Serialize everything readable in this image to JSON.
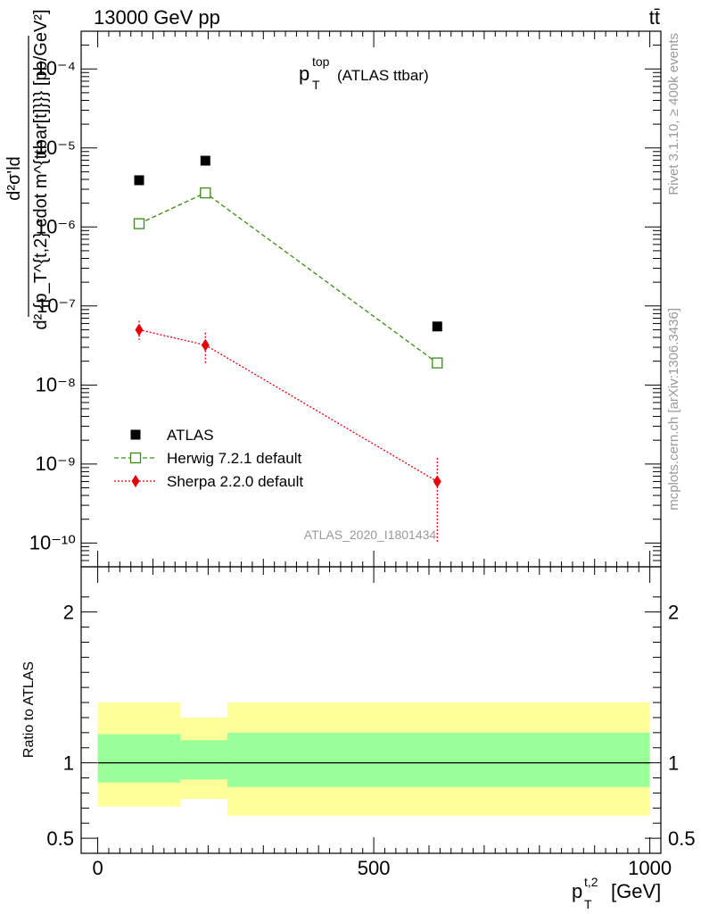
{
  "header": {
    "left": "13000 GeV pp",
    "right": "tt̄"
  },
  "plot_title": {
    "main": "p",
    "sup": "top",
    "sub": "T",
    "rest": "(ATLAS ttbar)"
  },
  "side_text": {
    "rivet": "Rivet 3.1.10, ≥ 400k events",
    "mcplots": "mcplots.cern.ch [arXiv:1306.3436]"
  },
  "watermark": "ATLAS_2020_I1801434",
  "y_axis_label": {
    "numerator": "d²σ'ld",
    "denominator": "d² {p_T^{t,2} cdot m^{ttbar[t]}}} [pb/GeV²]"
  },
  "x_axis_label": {
    "main": "p",
    "sup": "t,2",
    "sub": "T",
    "unit": "[GeV]"
  },
  "ratio_axis_label": "Ratio to ATLAS",
  "colors": {
    "data": "#000000",
    "herwig": "#3a8a10",
    "sherpa": "#e8000b",
    "band_inner": "#99ff99",
    "band_outer": "#ffff99"
  },
  "chart_data": [
    {
      "type": "scatter",
      "panel": "main",
      "y_scale": "log",
      "ylim": [
        5e-11,
        0.0003
      ],
      "xlim": [
        -30,
        1020
      ],
      "y_ticks": [
        "10⁻¹⁰",
        "10⁻⁹",
        "10⁻⁸",
        "10⁻⁷",
        "10⁻⁶",
        "10⁻⁵",
        "10⁻⁴"
      ],
      "legend_position": "bottom-left",
      "series": [
        {
          "name": "ATLAS",
          "key": "data",
          "x": [
            75,
            195,
            615
          ],
          "y": [
            3.9e-06,
            6.9e-06,
            5.5e-08
          ],
          "err_lo": [
            0,
            0,
            0
          ],
          "err_hi": [
            0,
            0,
            0
          ]
        },
        {
          "name": "Herwig 7.2.1 default",
          "key": "herwig",
          "x": [
            75,
            195,
            615
          ],
          "y": [
            1.1e-06,
            2.7e-06,
            1.9e-08
          ],
          "err_lo": [
            0,
            0,
            0
          ],
          "err_hi": [
            0,
            0,
            0
          ]
        },
        {
          "name": "Sherpa 2.2.0 default",
          "key": "sherpa",
          "x": [
            75,
            195,
            615
          ],
          "y": [
            5e-08,
            3.2e-08,
            6e-10
          ],
          "err_lo": [
            3.7e-08,
            1.9e-08,
            1e-10
          ],
          "err_hi": [
            6.5e-08,
            4.6e-08,
            1.2e-09
          ]
        }
      ]
    },
    {
      "type": "area",
      "panel": "ratio",
      "ylim": [
        0.4,
        2.3
      ],
      "y_ticks": [
        0.5,
        1,
        2
      ],
      "x_ticks": [
        0,
        500,
        1000
      ],
      "reference_line": 1,
      "bins": [
        {
          "x_lo": 0,
          "x_hi": 150,
          "inner": [
            0.87,
            1.19
          ],
          "outer": [
            0.71,
            1.4
          ]
        },
        {
          "x_lo": 150,
          "x_hi": 235,
          "inner": [
            0.89,
            1.15
          ],
          "outer": [
            0.76,
            1.3
          ]
        },
        {
          "x_lo": 235,
          "x_hi": 1000,
          "inner": [
            0.84,
            1.2
          ],
          "outer": [
            0.65,
            1.4
          ]
        }
      ]
    }
  ]
}
